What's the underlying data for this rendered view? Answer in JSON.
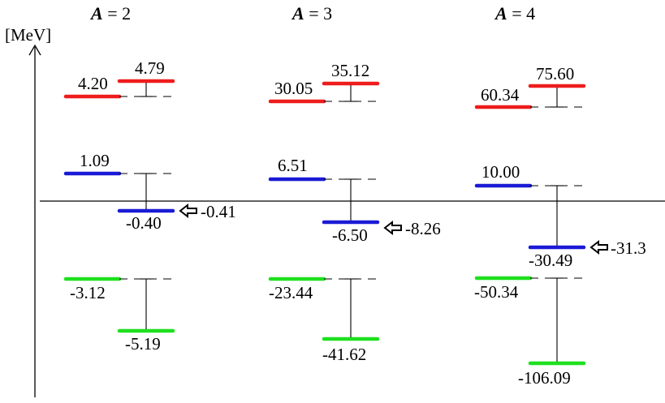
{
  "axis": {
    "unit_label": "[MeV]"
  },
  "columns": [
    {
      "header_var": "A",
      "header_rest": " = 2",
      "levels": {
        "red_left": "4.20",
        "red_right": "4.79",
        "blue_left": "1.09",
        "blue_right": "-0.40",
        "green_left": "-3.12",
        "green_right": "-5.19"
      },
      "arrow_value": "-0.41"
    },
    {
      "header_var": "A",
      "header_rest": " = 3",
      "levels": {
        "red_left": "30.05",
        "red_right": "35.12",
        "blue_left": "6.51",
        "blue_right": "-6.50",
        "green_left": "-23.44",
        "green_right": "-41.62"
      },
      "arrow_value": "-8.26"
    },
    {
      "header_var": "A",
      "header_rest": " = 4",
      "levels": {
        "red_left": "60.34",
        "red_right": "75.60",
        "blue_left": "10.00",
        "blue_right": "-30.49",
        "green_left": "-50.34",
        "green_right": "-106.09"
      },
      "arrow_value": "-31.3"
    }
  ],
  "colors": {
    "red": "#ee1c1c",
    "blue": "#1a1ad6",
    "green": "#1ee01e",
    "line": "#000000"
  }
}
